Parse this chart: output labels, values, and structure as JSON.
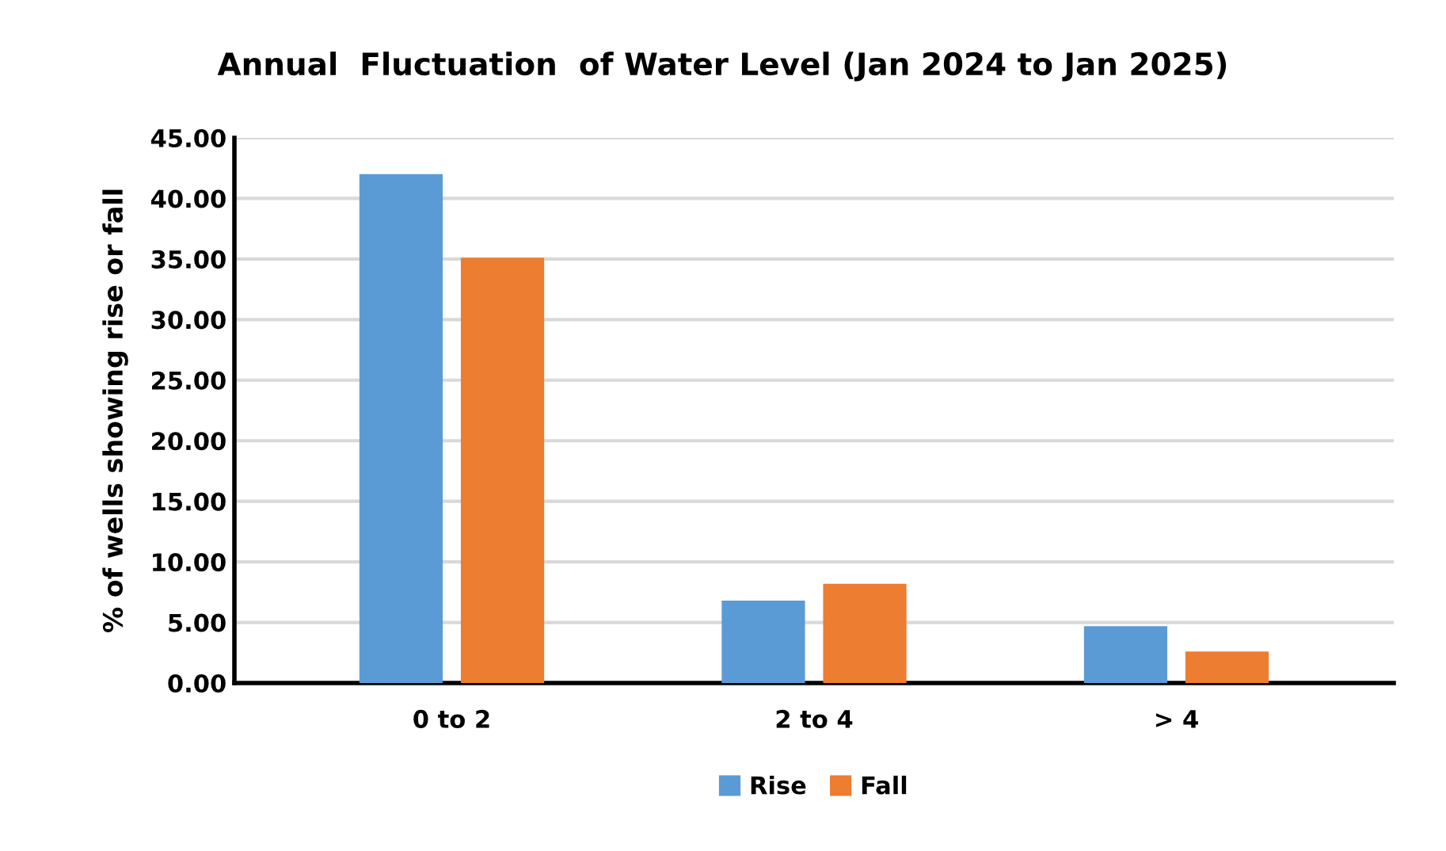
{
  "chart_data": {
    "type": "bar",
    "title": "Annual  Fluctuation  of Water Level (Jan 2024 to Jan 2025)",
    "ylabel": "% of wells showing rise or fall",
    "categories": [
      "0 to 2",
      "2 to 4",
      "> 4"
    ],
    "series": [
      {
        "name": "Rise",
        "color": "#5b9bd5",
        "values": [
          42.0,
          6.8,
          4.7
        ]
      },
      {
        "name": "Fall",
        "color": "#ed7d31",
        "values": [
          35.1,
          8.2,
          2.6
        ]
      }
    ],
    "ylim": [
      0,
      45
    ],
    "yticks": [
      {
        "value": 0,
        "label": "0.00"
      },
      {
        "value": 5,
        "label": "5.00"
      },
      {
        "value": 10,
        "label": "10.00"
      },
      {
        "value": 15,
        "label": "15.00"
      },
      {
        "value": 20,
        "label": "20.00"
      },
      {
        "value": 25,
        "label": "25.00"
      },
      {
        "value": 30,
        "label": "30.00"
      },
      {
        "value": 35,
        "label": "35.00"
      },
      {
        "value": 40,
        "label": "40.00"
      },
      {
        "value": 45,
        "label": "45.00"
      }
    ],
    "grid": "y",
    "legend": "bottom"
  }
}
